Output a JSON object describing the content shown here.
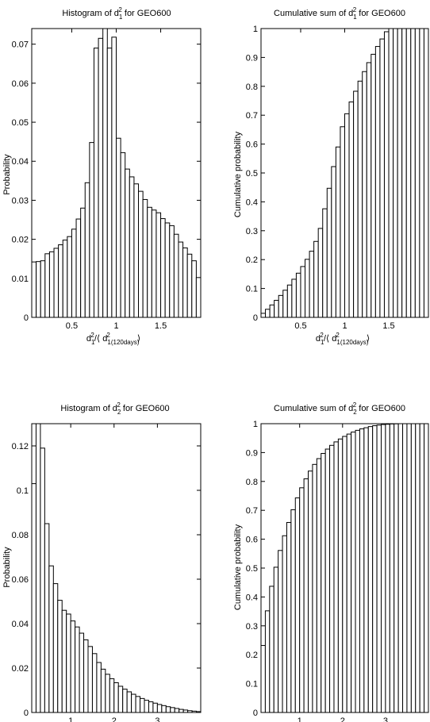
{
  "chart_data": [
    {
      "type": "bar",
      "title": "Histogram of d₁² for GEO600",
      "xlabel": "d₁²/⟨ d₁(120days)²⟩",
      "ylabel": "Probability",
      "xlim": [
        0.05,
        1.95
      ],
      "ylim": [
        0,
        0.074
      ],
      "xticks": [
        0.5,
        1,
        1.5
      ],
      "xtick_labels": [
        "0.5",
        "1",
        "1.5"
      ],
      "yticks": [
        0,
        0.01,
        0.02,
        0.03,
        0.04,
        0.05,
        0.06,
        0.07
      ],
      "ytick_labels": [
        "0",
        "0.01",
        "0.02",
        "0.03",
        "0.04",
        "0.05",
        "0.06",
        "0.07"
      ],
      "bar_width": 0.05,
      "x": [
        0.075,
        0.125,
        0.175,
        0.225,
        0.275,
        0.325,
        0.375,
        0.425,
        0.475,
        0.525,
        0.575,
        0.625,
        0.675,
        0.725,
        0.775,
        0.825,
        0.875,
        0.925,
        0.975,
        1.025,
        1.075,
        1.125,
        1.175,
        1.225,
        1.275,
        1.325,
        1.375,
        1.425,
        1.475,
        1.525,
        1.575,
        1.625,
        1.675,
        1.725,
        1.775,
        1.825,
        1.875,
        1.925
      ],
      "values": [
        0.0142,
        0.0143,
        0.0145,
        0.0163,
        0.0168,
        0.0177,
        0.0186,
        0.0198,
        0.0207,
        0.0226,
        0.0252,
        0.028,
        0.0345,
        0.0448,
        0.069,
        0.0715,
        0.0765,
        0.069,
        0.0718,
        0.0459,
        0.0422,
        0.038,
        0.036,
        0.0342,
        0.0323,
        0.0302,
        0.0282,
        0.0275,
        0.0268,
        0.0253,
        0.0242,
        0.0235,
        0.0213,
        0.0193,
        0.0178,
        0.0162,
        0.0145,
        0.0102
      ]
    },
    {
      "type": "bar",
      "title": "Cumulative sum of d₁² for GEO600",
      "xlabel": "d₁²/⟨ d₁(120days)²⟩",
      "ylabel": "Cumulative probability",
      "xlim": [
        0.05,
        1.95
      ],
      "ylim": [
        0,
        1
      ],
      "xticks": [
        0.5,
        1,
        1.5
      ],
      "xtick_labels": [
        "0.5",
        "1",
        "1.5"
      ],
      "yticks": [
        0,
        0.1,
        0.2,
        0.3,
        0.4,
        0.5,
        0.6,
        0.7,
        0.8,
        0.9,
        1
      ],
      "ytick_labels": [
        "0",
        "0.1",
        "0.2",
        "0.3",
        "0.4",
        "0.5",
        "0.6",
        "0.7",
        "0.8",
        "0.9",
        "1"
      ],
      "bar_width": 0.05,
      "x": [
        0.075,
        0.125,
        0.175,
        0.225,
        0.275,
        0.325,
        0.375,
        0.425,
        0.475,
        0.525,
        0.575,
        0.625,
        0.675,
        0.725,
        0.775,
        0.825,
        0.875,
        0.925,
        0.975,
        1.025,
        1.075,
        1.125,
        1.175,
        1.225,
        1.275,
        1.325,
        1.375,
        1.425,
        1.475,
        1.525,
        1.575,
        1.625,
        1.675,
        1.725,
        1.775,
        1.825,
        1.875,
        1.925
      ],
      "values": [
        0.014,
        0.028,
        0.043,
        0.059,
        0.076,
        0.094,
        0.112,
        0.132,
        0.153,
        0.176,
        0.201,
        0.229,
        0.263,
        0.308,
        0.376,
        0.447,
        0.522,
        0.59,
        0.66,
        0.705,
        0.746,
        0.783,
        0.818,
        0.851,
        0.882,
        0.911,
        0.938,
        0.964,
        0.989,
        1.0,
        1.0,
        1.0,
        1.0,
        1.0,
        1.0,
        1.0,
        1.0,
        1.0
      ]
    },
    {
      "type": "bar",
      "title": "Histogram of d₂² for GEO600",
      "xlabel": "",
      "ylabel": "Probability",
      "xlim": [
        0.1,
        4.0
      ],
      "ylim": [
        0,
        0.13
      ],
      "xticks": [
        1,
        2,
        3
      ],
      "xtick_labels": [
        "1",
        "2",
        "3"
      ],
      "yticks": [
        0,
        0.02,
        0.04,
        0.06,
        0.08,
        0.1,
        0.12
      ],
      "ytick_labels": [
        "0",
        "0.02",
        "0.04",
        "0.06",
        "0.08",
        "0.1",
        "0.12"
      ],
      "bar_width": 0.1,
      "x": [
        0.15,
        0.25,
        0.35,
        0.45,
        0.55,
        0.65,
        0.75,
        0.85,
        0.95,
        1.05,
        1.15,
        1.25,
        1.35,
        1.45,
        1.55,
        1.65,
        1.75,
        1.85,
        1.95,
        2.05,
        2.15,
        2.25,
        2.35,
        2.45,
        2.55,
        2.65,
        2.75,
        2.85,
        2.95,
        3.05,
        3.15,
        3.25,
        3.35,
        3.45,
        3.55,
        3.65,
        3.75,
        3.85,
        3.95
      ],
      "values": [
        0.103,
        0.136,
        0.119,
        0.085,
        0.066,
        0.058,
        0.0505,
        0.046,
        0.0443,
        0.0412,
        0.0385,
        0.0357,
        0.0327,
        0.0297,
        0.0265,
        0.0225,
        0.0195,
        0.0172,
        0.0152,
        0.0134,
        0.0118,
        0.0105,
        0.0093,
        0.0082,
        0.0072,
        0.0063,
        0.0055,
        0.0048,
        0.0042,
        0.0036,
        0.0031,
        0.0026,
        0.0022,
        0.0018,
        0.0014,
        0.0011,
        0.0008,
        0.0006,
        0.0004
      ]
    },
    {
      "type": "bar",
      "title": "Cumulative sum of d₂² for GEO600",
      "xlabel": "",
      "ylabel": "Cumulative probability",
      "xlim": [
        0.1,
        4.0
      ],
      "ylim": [
        0,
        1
      ],
      "xticks": [
        1,
        2,
        3
      ],
      "xtick_labels": [
        "1",
        "2",
        "3"
      ],
      "yticks": [
        0,
        0.1,
        0.2,
        0.3,
        0.4,
        0.5,
        0.6,
        0.7,
        0.8,
        0.9,
        1
      ],
      "ytick_labels": [
        "0",
        "0.1",
        "0.2",
        "0.3",
        "0.4",
        "0.5",
        "0.6",
        "0.7",
        "0.8",
        "0.9",
        "1"
      ],
      "bar_width": 0.1,
      "x": [
        0.15,
        0.25,
        0.35,
        0.45,
        0.55,
        0.65,
        0.75,
        0.85,
        0.95,
        1.05,
        1.15,
        1.25,
        1.35,
        1.45,
        1.55,
        1.65,
        1.75,
        1.85,
        1.95,
        2.05,
        2.15,
        2.25,
        2.35,
        2.45,
        2.55,
        2.65,
        2.75,
        2.85,
        2.95,
        3.05,
        3.15,
        3.25,
        3.35,
        3.45,
        3.55,
        3.65,
        3.75,
        3.85,
        3.95
      ],
      "values": [
        0.232,
        0.352,
        0.437,
        0.503,
        0.561,
        0.612,
        0.658,
        0.702,
        0.743,
        0.778,
        0.809,
        0.836,
        0.859,
        0.879,
        0.897,
        0.912,
        0.925,
        0.937,
        0.947,
        0.956,
        0.964,
        0.971,
        0.977,
        0.982,
        0.986,
        0.99,
        0.993,
        0.995,
        0.997,
        0.998,
        0.999,
        0.9995,
        1.0,
        1.0,
        1.0,
        1.0,
        1.0,
        1.0,
        1.0
      ]
    }
  ]
}
